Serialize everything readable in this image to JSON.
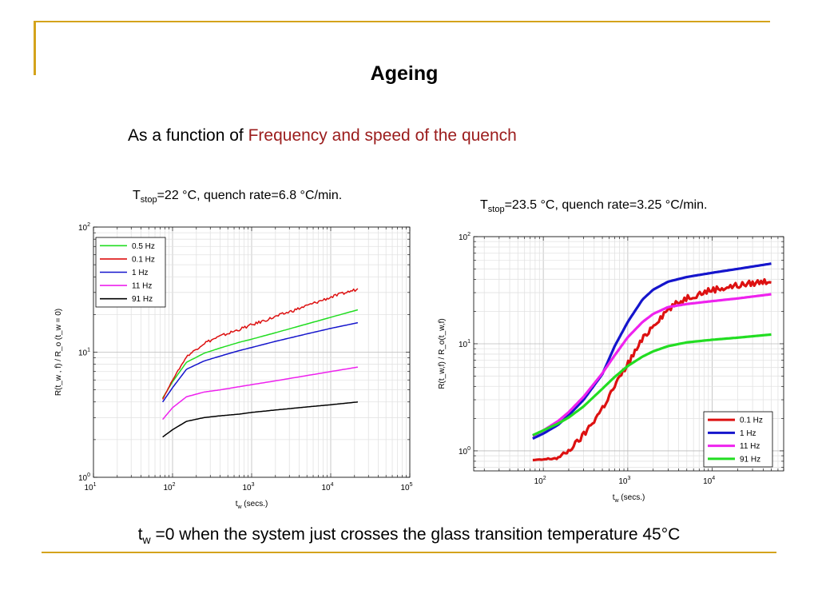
{
  "slide": {
    "title": "Ageing",
    "subtitle_prefix": "As a function of ",
    "subtitle_highlight": "Frequency and speed of the quench",
    "bottom_note": {
      "t": "t",
      "sub": "w",
      "rest": " =0 when the system just crosses the glass transition temperature 45°C"
    }
  },
  "colors": {
    "frame": "#d4a31c",
    "highlight": "#9b1c1c",
    "green": "#22dd22",
    "red": "#dd1111",
    "blue": "#1515cc",
    "magenta": "#ee22ee",
    "black": "#000000"
  },
  "chart_data": [
    {
      "type": "line",
      "caption": {
        "T": "T",
        "sub": "stop",
        "rest": "=22 °C, quench rate=6.8 °C/min."
      },
      "xscale": "log",
      "yscale": "log",
      "xlim": [
        10,
        100000
      ],
      "ylim": [
        1,
        100
      ],
      "xlabel": {
        "t": "t",
        "sub": "w",
        "rest": " (secs.)"
      },
      "ylabel": "R(t_w , f) / R_o (t_w = 0)",
      "xticks": [
        10,
        100,
        1000,
        10000,
        100000
      ],
      "xtick_labels": [
        {
          "b": "10",
          "e": "1"
        },
        {
          "b": "10",
          "e": "2"
        },
        {
          "b": "10",
          "e": "3"
        },
        {
          "b": "10",
          "e": "4"
        },
        {
          "b": "10",
          "e": "5"
        }
      ],
      "yticks": [
        1,
        10,
        100
      ],
      "ytick_labels": [
        {
          "b": "10",
          "e": "0"
        },
        {
          "b": "10",
          "e": "1"
        },
        {
          "b": "10",
          "e": "2"
        }
      ],
      "grid": true,
      "legend": "top-left",
      "series": [
        {
          "name": "0.5 Hz",
          "color": "#22dd22",
          "x": [
            75,
            100,
            150,
            250,
            400,
            700,
            1000,
            2000,
            5000,
            10000,
            22000
          ],
          "y": [
            4.3,
            5.8,
            8.3,
            9.8,
            10.8,
            12.0,
            12.7,
            14.3,
            16.8,
            19.0,
            21.8
          ],
          "noise": 0
        },
        {
          "name": "0.1 Hz",
          "color": "#dd1111",
          "x": [
            75,
            100,
            150,
            250,
            400,
            700,
            1000,
            2000,
            5000,
            10000,
            22000
          ],
          "y": [
            4.2,
            6.0,
            9.2,
            11.8,
            13.4,
            15.2,
            16.5,
            19.2,
            23.5,
            27.5,
            32.0
          ],
          "noise": 0.012
        },
        {
          "name": "1 Hz",
          "color": "#1515cc",
          "x": [
            75,
            100,
            150,
            250,
            400,
            700,
            1000,
            2000,
            5000,
            10000,
            22000
          ],
          "y": [
            4.0,
            5.2,
            7.3,
            8.5,
            9.3,
            10.3,
            10.9,
            12.2,
            14.0,
            15.5,
            17.2
          ],
          "noise": 0
        },
        {
          "name": "11 Hz",
          "color": "#ee22ee",
          "x": [
            75,
            100,
            150,
            250,
            400,
            700,
            1000,
            2000,
            5000,
            10000,
            22000
          ],
          "y": [
            2.9,
            3.6,
            4.4,
            4.8,
            5.0,
            5.3,
            5.5,
            5.9,
            6.5,
            7.0,
            7.6
          ],
          "noise": 0
        },
        {
          "name": "91 Hz",
          "color": "#000000",
          "x": [
            75,
            100,
            150,
            250,
            400,
            700,
            1000,
            2000,
            5000,
            10000,
            22000
          ],
          "y": [
            2.1,
            2.4,
            2.8,
            3.0,
            3.1,
            3.2,
            3.3,
            3.45,
            3.65,
            3.8,
            4.0
          ],
          "noise": 0
        }
      ]
    },
    {
      "type": "line",
      "caption": {
        "T": "T",
        "sub": "stop",
        "rest": "=23.5 °C, quench rate=3.25 °C/min."
      },
      "xscale": "log",
      "yscale": "log",
      "xlim": [
        15,
        70000
      ],
      "ylim": [
        0.65,
        100
      ],
      "xlabel": {
        "t": "t",
        "sub": "w",
        "rest": " (secs.)"
      },
      "ylabel": "R(t_w,f) / R_o(t_w,f)",
      "xticks": [
        100,
        1000,
        10000
      ],
      "xtick_labels": [
        {
          "b": "10",
          "e": "2"
        },
        {
          "b": "10",
          "e": "3"
        },
        {
          "b": "10",
          "e": "4"
        }
      ],
      "yticks": [
        1,
        10,
        100
      ],
      "ytick_labels": [
        {
          "b": "10",
          "e": "0"
        },
        {
          "b": "10",
          "e": "1"
        },
        {
          "b": "10",
          "e": "2"
        }
      ],
      "grid": true,
      "legend": "bottom-right",
      "series": [
        {
          "name": "0.1 Hz",
          "color": "#dd1111",
          "x": [
            75,
            100,
            150,
            200,
            300,
            500,
            700,
            1000,
            1500,
            2000,
            3000,
            5000,
            10000,
            20000,
            50000
          ],
          "y": [
            0.82,
            0.83,
            0.86,
            1.0,
            1.4,
            2.5,
            4.0,
            6.5,
            11.0,
            15.0,
            21.0,
            27.0,
            32.0,
            35.0,
            39.0
          ],
          "noise": 0.03
        },
        {
          "name": "1 Hz",
          "color": "#1515cc",
          "x": [
            75,
            100,
            150,
            200,
            300,
            500,
            700,
            1000,
            1500,
            2000,
            3000,
            5000,
            10000,
            20000,
            50000
          ],
          "y": [
            1.3,
            1.45,
            1.75,
            2.15,
            3.0,
            5.2,
            9.5,
            16.0,
            26.0,
            32.0,
            38.0,
            42.0,
            46.0,
            50.0,
            56.0
          ],
          "noise": 0
        },
        {
          "name": "11 Hz",
          "color": "#ee22ee",
          "x": [
            75,
            100,
            150,
            200,
            300,
            500,
            700,
            1000,
            1500,
            2000,
            3000,
            5000,
            10000,
            20000,
            50000
          ],
          "y": [
            1.38,
            1.55,
            1.9,
            2.3,
            3.2,
            5.3,
            7.8,
            11.5,
            16.0,
            19.0,
            22.0,
            23.5,
            25.0,
            26.5,
            29.0
          ],
          "noise": 0
        },
        {
          "name": "91 Hz",
          "color": "#22dd22",
          "x": [
            75,
            100,
            150,
            200,
            300,
            500,
            700,
            1000,
            1500,
            2000,
            3000,
            5000,
            10000,
            20000,
            50000
          ],
          "y": [
            1.4,
            1.55,
            1.8,
            2.05,
            2.6,
            3.8,
            4.9,
            6.2,
            7.6,
            8.5,
            9.5,
            10.3,
            10.9,
            11.4,
            12.2
          ],
          "noise": 0
        }
      ]
    }
  ]
}
